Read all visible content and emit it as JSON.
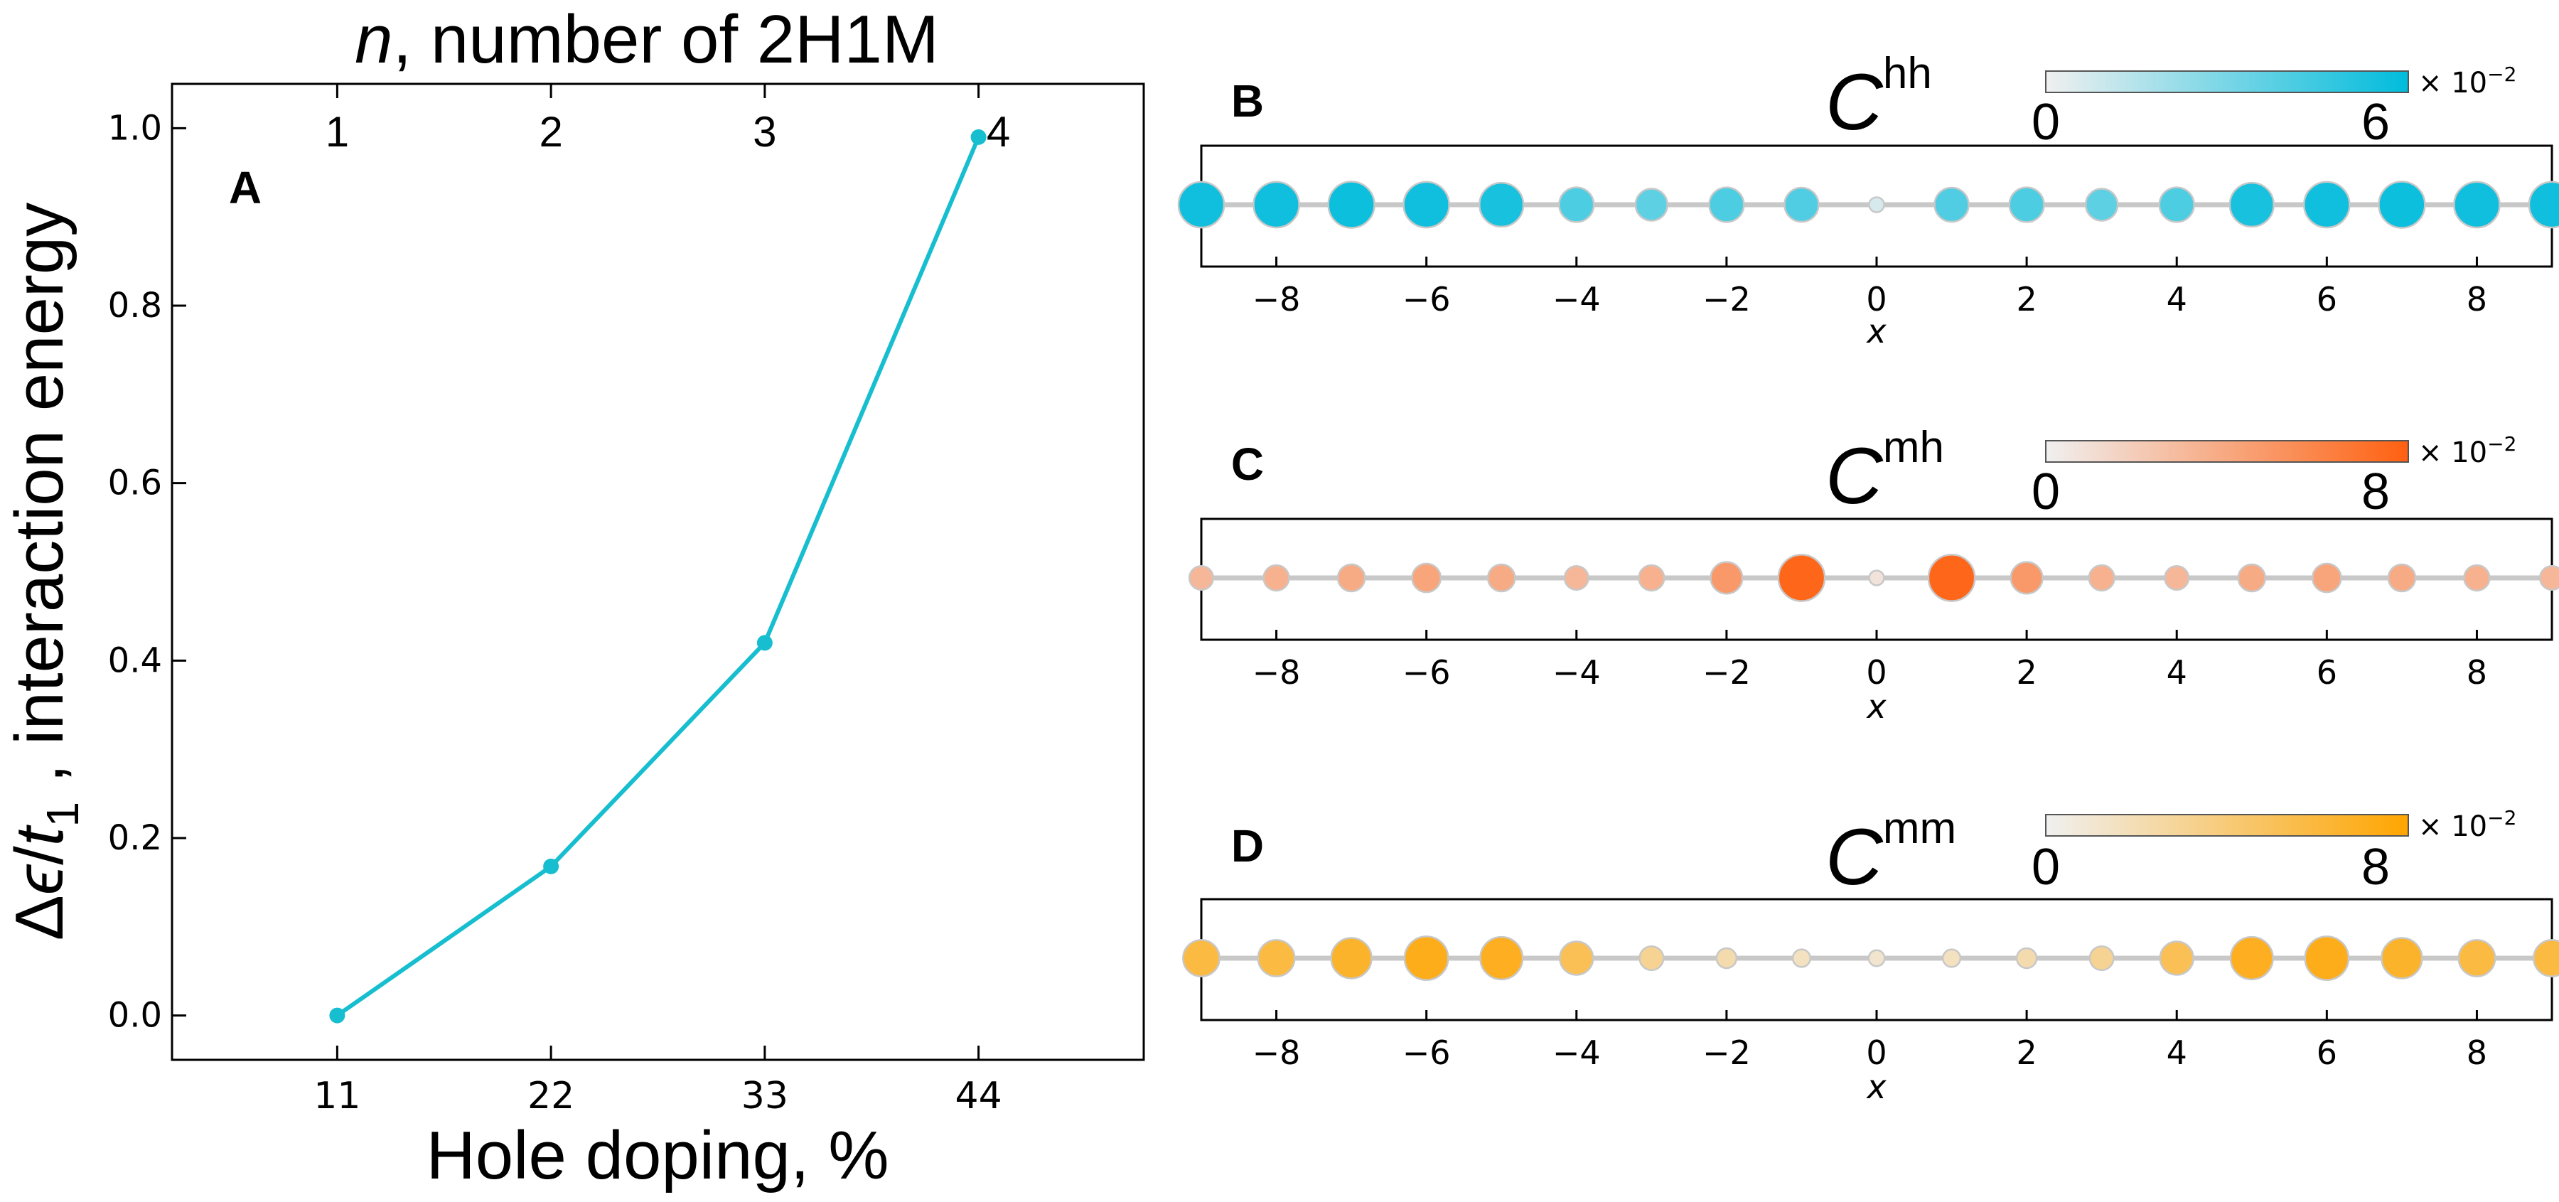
{
  "chart_data": [
    {
      "panel": "A",
      "type": "line",
      "top_axis_title_var": "n",
      "top_axis_title_rest": ", number of 2H1M",
      "top_ticks": [
        "1",
        "2",
        "3",
        "4"
      ],
      "xlabel": "Hole doping, %",
      "ylabel_delta": "Δ",
      "ylabel_eps": "ϵ",
      "ylabel_slash": "/",
      "ylabel_t": "t",
      "ylabel_sub": "1",
      "ylabel_rest": " , interaction energy",
      "categories": [
        "11",
        "22",
        "33",
        "44"
      ],
      "x": [
        11,
        22,
        33,
        44
      ],
      "values": [
        0.0,
        0.168,
        0.42,
        0.99
      ],
      "xlim": [
        2.5,
        52.5
      ],
      "ylim": [
        -0.05,
        1.05
      ],
      "yticks": [
        "0.0",
        "0.2",
        "0.4",
        "0.6",
        "0.8",
        "1.0"
      ],
      "ytick_values": [
        0.0,
        0.2,
        0.4,
        0.6,
        0.8,
        1.0
      ],
      "color": "#17becf"
    },
    {
      "panel": "B",
      "type": "scatter",
      "title_main": "C",
      "title_sup": "hh",
      "colorbar_min": "0",
      "colorbar_max": "6",
      "colorbar_exp": "× 10",
      "colorbar_exp_sup": "−2",
      "vmax": 6.5,
      "color": "#00bcdc",
      "xlabel": "x",
      "xlim": [
        -9,
        9
      ],
      "xticks": [
        "−8",
        "−6",
        "−4",
        "−2",
        "0",
        "2",
        "4",
        "6",
        "8"
      ],
      "xtick_values": [
        -8,
        -6,
        -4,
        -2,
        0,
        2,
        4,
        6,
        8
      ],
      "x": [
        -9,
        -8,
        -7,
        -6,
        -5,
        -4,
        -3,
        -2,
        -1,
        0,
        1,
        2,
        3,
        4,
        5,
        6,
        7,
        8,
        9
      ],
      "values": [
        6.0,
        6.0,
        6.1,
        6.0,
        5.7,
        4.0,
        3.5,
        4.0,
        3.9,
        0.4,
        3.9,
        4.0,
        3.5,
        4.0,
        5.7,
        6.0,
        6.1,
        6.0,
        6.0
      ]
    },
    {
      "panel": "C",
      "type": "scatter",
      "title_main": "C",
      "title_sup": "mh",
      "colorbar_min": "0",
      "colorbar_max": "8",
      "colorbar_exp": "× 10",
      "colorbar_exp_sup": "−2",
      "vmax": 9.0,
      "color": "#ff6010",
      "xlabel": "x",
      "xlim": [
        -9,
        9
      ],
      "xticks": [
        "−8",
        "−6",
        "−4",
        "−2",
        "0",
        "2",
        "4",
        "6",
        "8"
      ],
      "xtick_values": [
        -8,
        -6,
        -4,
        -2,
        0,
        2,
        4,
        6,
        8
      ],
      "x": [
        -9,
        -8,
        -7,
        -6,
        -5,
        -4,
        -3,
        -2,
        -1,
        0,
        1,
        2,
        3,
        4,
        5,
        6,
        7,
        8,
        9
      ],
      "values": [
        2.8,
        3.2,
        3.6,
        4.0,
        3.6,
        2.8,
        3.2,
        4.8,
        8.5,
        0.5,
        8.5,
        4.8,
        3.2,
        2.8,
        3.6,
        4.0,
        3.6,
        3.2,
        2.8
      ]
    },
    {
      "panel": "D",
      "type": "scatter",
      "title_main": "C",
      "title_sup": "mm",
      "colorbar_min": "0",
      "colorbar_max": "8",
      "colorbar_exp": "× 10",
      "colorbar_exp_sup": "−2",
      "vmax": 9.0,
      "color": "#ffa500",
      "xlabel": "x",
      "xlim": [
        -9,
        9
      ],
      "xticks": [
        "−8",
        "−6",
        "−4",
        "−2",
        "0",
        "2",
        "4",
        "6",
        "8"
      ],
      "xtick_values": [
        -8,
        -6,
        -4,
        -2,
        0,
        2,
        4,
        6,
        8
      ],
      "x": [
        -9,
        -8,
        -7,
        -6,
        -5,
        -4,
        -3,
        -2,
        -1,
        0,
        1,
        2,
        3,
        4,
        5,
        6,
        7,
        8,
        9
      ],
      "values": [
        6.0,
        6.0,
        7.0,
        7.8,
        7.5,
        5.2,
        2.8,
        1.8,
        1.2,
        0.8,
        1.2,
        1.8,
        2.8,
        5.2,
        7.5,
        7.8,
        7.0,
        6.0,
        6.0
      ]
    }
  ]
}
